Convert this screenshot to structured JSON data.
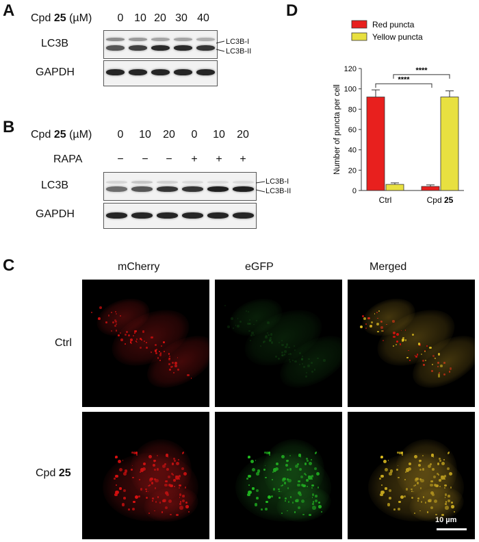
{
  "panel_A": {
    "letter": "A",
    "cpd_prefix": "Cpd",
    "cpd_bold": "25",
    "cpd_unit": "(µM)",
    "concentrations": [
      "0",
      "10",
      "20",
      "30",
      "40"
    ],
    "row_lc3b": "LC3B",
    "row_gapdh": "GAPDH",
    "lc3b_i": "LC3B-I",
    "lc3b_ii": "LC3B-II"
  },
  "panel_B": {
    "letter": "B",
    "cpd_prefix": "Cpd",
    "cpd_bold": "25",
    "cpd_unit": "(µM)",
    "concentrations": [
      "0",
      "10",
      "20",
      "0",
      "10",
      "20"
    ],
    "rapa_label": "RAPA",
    "rapa_signs": [
      "−",
      "−",
      "−",
      "+",
      "+",
      "+"
    ],
    "row_lc3b": "LC3B",
    "row_gapdh": "GAPDH",
    "lc3b_i": "LC3B-I",
    "lc3b_ii": "LC3B-II"
  },
  "panel_C": {
    "letter": "C",
    "columns": [
      "mCherry",
      "eGFP",
      "Merged"
    ],
    "row_ctrl": "Ctrl",
    "row_cpd_prefix": "Cpd",
    "row_cpd_bold": "25",
    "scale_bar": "10 µm",
    "colors": {
      "mcherry": "#e01010",
      "egfp": "#22c022",
      "merged": "#e0c020"
    }
  },
  "panel_D": {
    "letter": "D",
    "significance": "****",
    "chart_data": {
      "type": "bar",
      "categories": [
        "Ctrl",
        "Cpd 25"
      ],
      "category_label_prefix": "Cpd",
      "category_label_bold": "25",
      "ylabel": "Number of puncta per cell",
      "ylim": [
        0,
        120
      ],
      "yticks": [
        0,
        20,
        40,
        60,
        80,
        100,
        120
      ],
      "legend_position": "top",
      "series": [
        {
          "name": "Red puncta",
          "color": "#e8201e",
          "values": [
            92,
            4
          ],
          "errors": [
            7,
            1.5
          ]
        },
        {
          "name": "Yellow puncta",
          "color": "#e8e040",
          "values": [
            6,
            92
          ],
          "errors": [
            1.5,
            6
          ]
        }
      ],
      "comparisons": [
        {
          "from": "Ctrl / Red puncta",
          "to": "Cpd 25 / Red puncta",
          "label": "****"
        },
        {
          "from": "Ctrl / Yellow puncta",
          "to": "Cpd 25 / Yellow puncta",
          "label": "****"
        }
      ]
    }
  }
}
